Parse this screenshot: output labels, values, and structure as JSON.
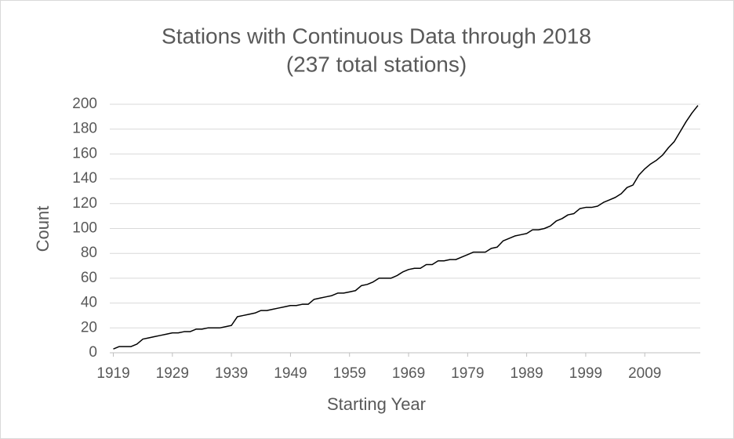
{
  "chart_data": {
    "type": "line",
    "title": "Stations with Continuous Data through 2018",
    "subtitle": "(237 total stations)",
    "xlabel": "Starting Year",
    "ylabel": "Count",
    "x": [
      1919,
      1920,
      1921,
      1922,
      1923,
      1924,
      1925,
      1926,
      1927,
      1928,
      1929,
      1930,
      1931,
      1932,
      1933,
      1934,
      1935,
      1936,
      1937,
      1938,
      1939,
      1940,
      1941,
      1942,
      1943,
      1944,
      1945,
      1946,
      1947,
      1948,
      1949,
      1950,
      1951,
      1952,
      1953,
      1954,
      1955,
      1956,
      1957,
      1958,
      1959,
      1960,
      1961,
      1962,
      1963,
      1964,
      1965,
      1966,
      1967,
      1968,
      1969,
      1970,
      1971,
      1972,
      1973,
      1974,
      1975,
      1976,
      1977,
      1978,
      1979,
      1980,
      1981,
      1982,
      1983,
      1984,
      1985,
      1986,
      1987,
      1988,
      1989,
      1990,
      1991,
      1992,
      1993,
      1994,
      1995,
      1996,
      1997,
      1998,
      1999,
      2000,
      2001,
      2002,
      2003,
      2004,
      2005,
      2006,
      2007,
      2008,
      2009,
      2010,
      2011,
      2012,
      2013,
      2014,
      2015,
      2016,
      2017,
      2018
    ],
    "series": [
      {
        "name": "Count",
        "color": "#000000",
        "values": [
          3,
          5,
          5,
          5,
          7,
          11,
          12,
          13,
          14,
          15,
          16,
          16,
          17,
          17,
          19,
          19,
          20,
          20,
          20,
          21,
          22,
          29,
          30,
          31,
          32,
          34,
          34,
          35,
          36,
          37,
          38,
          38,
          39,
          39,
          43,
          44,
          45,
          46,
          48,
          48,
          49,
          50,
          54,
          55,
          57,
          60,
          60,
          60,
          62,
          65,
          67,
          68,
          68,
          71,
          71,
          74,
          74,
          75,
          75,
          77,
          79,
          81,
          81,
          81,
          84,
          85,
          90,
          92,
          94,
          95,
          96,
          99,
          99,
          100,
          102,
          106,
          108,
          111,
          112,
          116,
          117,
          117,
          118,
          121,
          123,
          125,
          128,
          133,
          135,
          143,
          148,
          152,
          155,
          159,
          165,
          170,
          178,
          186,
          193,
          199
        ]
      }
    ],
    "xlim": [
      1918.4,
      2018.4
    ],
    "xticks": [
      1919,
      1929,
      1939,
      1949,
      1959,
      1969,
      1979,
      1989,
      1999,
      2009
    ],
    "ylim": [
      0,
      200
    ],
    "yticks": [
      0,
      20,
      40,
      60,
      80,
      100,
      120,
      140,
      160,
      180,
      200
    ],
    "grid": true
  }
}
